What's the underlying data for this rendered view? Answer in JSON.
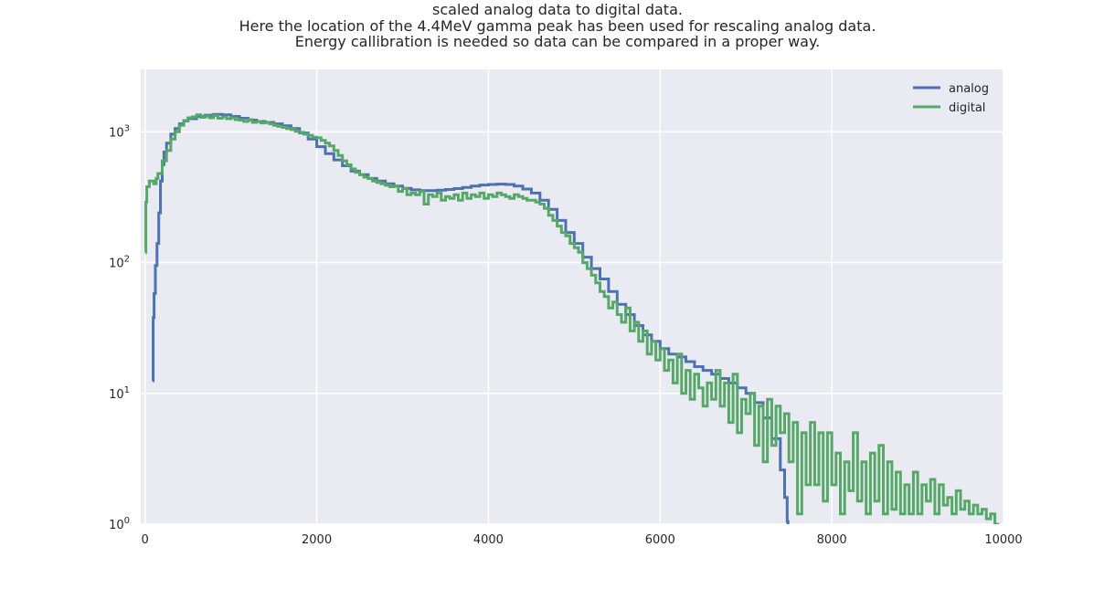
{
  "chart_data": {
    "type": "line",
    "title_lines": [
      "scaled analog data to digital data.",
      "Here the location of the 4.4MeV gamma peak has been used for rescaling analog data.",
      "Energy callibration is needed so data can be compared in a proper way."
    ],
    "xlabel": "",
    "ylabel": "",
    "xlim": [
      -50,
      10000
    ],
    "ylim": [
      1,
      3000
    ],
    "yscale": "log",
    "x_ticks": [
      {
        "value": 0,
        "label": "0"
      },
      {
        "value": 2000,
        "label": "2000"
      },
      {
        "value": 4000,
        "label": "4000"
      },
      {
        "value": 6000,
        "label": "6000"
      },
      {
        "value": 8000,
        "label": "8000"
      },
      {
        "value": 10000,
        "label": "10000"
      }
    ],
    "y_ticks": [
      {
        "value": 1,
        "base": "10",
        "exp": "0"
      },
      {
        "value": 10,
        "base": "10",
        "exp": "1"
      },
      {
        "value": 100,
        "base": "10",
        "exp": "2"
      },
      {
        "value": 1000,
        "base": "10",
        "exp": "3"
      }
    ],
    "grid": true,
    "legend_position": "top-right",
    "series": [
      {
        "name": "analog",
        "color": "#4c72b0",
        "points": [
          [
            85,
            12.5
          ],
          [
            90,
            12.5
          ],
          [
            95,
            38
          ],
          [
            105,
            58
          ],
          [
            120,
            95
          ],
          [
            140,
            140
          ],
          [
            160,
            240
          ],
          [
            180,
            420
          ],
          [
            200,
            560
          ],
          [
            220,
            700
          ],
          [
            250,
            820
          ],
          [
            300,
            960
          ],
          [
            350,
            1060
          ],
          [
            400,
            1150
          ],
          [
            450,
            1210
          ],
          [
            500,
            1260
          ],
          [
            600,
            1310
          ],
          [
            700,
            1340
          ],
          [
            800,
            1360
          ],
          [
            900,
            1350
          ],
          [
            1000,
            1310
          ],
          [
            1100,
            1270
          ],
          [
            1200,
            1230
          ],
          [
            1300,
            1200
          ],
          [
            1400,
            1180
          ],
          [
            1500,
            1150
          ],
          [
            1600,
            1110
          ],
          [
            1700,
            1060
          ],
          [
            1800,
            980
          ],
          [
            1900,
            880
          ],
          [
            2000,
            770
          ],
          [
            2100,
            680
          ],
          [
            2200,
            610
          ],
          [
            2300,
            550
          ],
          [
            2400,
            500
          ],
          [
            2500,
            470
          ],
          [
            2600,
            440
          ],
          [
            2700,
            420
          ],
          [
            2800,
            400
          ],
          [
            2900,
            385
          ],
          [
            3000,
            370
          ],
          [
            3100,
            360
          ],
          [
            3200,
            355
          ],
          [
            3300,
            355
          ],
          [
            3400,
            358
          ],
          [
            3500,
            362
          ],
          [
            3600,
            368
          ],
          [
            3700,
            375
          ],
          [
            3800,
            385
          ],
          [
            3900,
            392
          ],
          [
            4000,
            396
          ],
          [
            4100,
            398
          ],
          [
            4200,
            396
          ],
          [
            4300,
            385
          ],
          [
            4400,
            365
          ],
          [
            4500,
            340
          ],
          [
            4600,
            300
          ],
          [
            4700,
            255
          ],
          [
            4800,
            210
          ],
          [
            4900,
            170
          ],
          [
            5000,
            140
          ],
          [
            5100,
            110
          ],
          [
            5200,
            90
          ],
          [
            5300,
            75
          ],
          [
            5400,
            60
          ],
          [
            5500,
            48
          ],
          [
            5600,
            40
          ],
          [
            5700,
            33
          ],
          [
            5800,
            28
          ],
          [
            5900,
            25
          ],
          [
            6000,
            22
          ],
          [
            6100,
            20
          ],
          [
            6200,
            19
          ],
          [
            6300,
            17.5
          ],
          [
            6400,
            16
          ],
          [
            6500,
            15
          ],
          [
            6600,
            14
          ],
          [
            6700,
            13
          ],
          [
            6800,
            12
          ],
          [
            6900,
            11
          ],
          [
            7000,
            10
          ],
          [
            7100,
            8.5
          ],
          [
            7200,
            6.5
          ],
          [
            7300,
            4.5
          ],
          [
            7400,
            2.6
          ],
          [
            7450,
            1.6
          ],
          [
            7480,
            1.05
          ],
          [
            7490,
            1.0
          ]
        ]
      },
      {
        "name": "digital",
        "color": "#55a868",
        "points": [
          [
            0,
            120
          ],
          [
            10,
            290
          ],
          [
            20,
            380
          ],
          [
            50,
            420
          ],
          [
            100,
            400
          ],
          [
            130,
            440
          ],
          [
            150,
            480
          ],
          [
            200,
            600
          ],
          [
            250,
            720
          ],
          [
            300,
            880
          ],
          [
            350,
            1000
          ],
          [
            400,
            1120
          ],
          [
            450,
            1220
          ],
          [
            500,
            1280
          ],
          [
            550,
            1300
          ],
          [
            600,
            1350
          ],
          [
            650,
            1290
          ],
          [
            700,
            1320
          ],
          [
            750,
            1280
          ],
          [
            800,
            1330
          ],
          [
            850,
            1270
          ],
          [
            900,
            1300
          ],
          [
            950,
            1260
          ],
          [
            1000,
            1280
          ],
          [
            1050,
            1240
          ],
          [
            1100,
            1230
          ],
          [
            1150,
            1200
          ],
          [
            1200,
            1240
          ],
          [
            1250,
            1180
          ],
          [
            1300,
            1200
          ],
          [
            1350,
            1170
          ],
          [
            1400,
            1180
          ],
          [
            1450,
            1150
          ],
          [
            1500,
            1120
          ],
          [
            1550,
            1100
          ],
          [
            1600,
            1080
          ],
          [
            1650,
            1060
          ],
          [
            1700,
            1040
          ],
          [
            1750,
            1010
          ],
          [
            1800,
            990
          ],
          [
            1850,
            960
          ],
          [
            1900,
            940
          ],
          [
            1950,
            910
          ],
          [
            2000,
            900
          ],
          [
            2050,
            860
          ],
          [
            2100,
            820
          ],
          [
            2150,
            780
          ],
          [
            2200,
            720
          ],
          [
            2250,
            660
          ],
          [
            2300,
            600
          ],
          [
            2350,
            560
          ],
          [
            2400,
            520
          ],
          [
            2450,
            490
          ],
          [
            2500,
            470
          ],
          [
            2550,
            450
          ],
          [
            2600,
            440
          ],
          [
            2650,
            420
          ],
          [
            2700,
            410
          ],
          [
            2750,
            400
          ],
          [
            2800,
            390
          ],
          [
            2850,
            380
          ],
          [
            2900,
            385
          ],
          [
            2950,
            350
          ],
          [
            3000,
            370
          ],
          [
            3050,
            330
          ],
          [
            3100,
            340
          ],
          [
            3150,
            330
          ],
          [
            3200,
            350
          ],
          [
            3250,
            280
          ],
          [
            3300,
            330
          ],
          [
            3350,
            320
          ],
          [
            3400,
            340
          ],
          [
            3450,
            300
          ],
          [
            3500,
            320
          ],
          [
            3550,
            310
          ],
          [
            3600,
            330
          ],
          [
            3650,
            300
          ],
          [
            3700,
            340
          ],
          [
            3750,
            310
          ],
          [
            3800,
            330
          ],
          [
            3850,
            320
          ],
          [
            3900,
            340
          ],
          [
            3950,
            310
          ],
          [
            4000,
            330
          ],
          [
            4050,
            320
          ],
          [
            4100,
            340
          ],
          [
            4150,
            330
          ],
          [
            4200,
            320
          ],
          [
            4250,
            310
          ],
          [
            4300,
            330
          ],
          [
            4350,
            320
          ],
          [
            4400,
            310
          ],
          [
            4450,
            300
          ],
          [
            4500,
            300
          ],
          [
            4550,
            290
          ],
          [
            4600,
            280
          ],
          [
            4650,
            260
          ],
          [
            4700,
            230
          ],
          [
            4750,
            210
          ],
          [
            4800,
            190
          ],
          [
            4850,
            170
          ],
          [
            4900,
            160
          ],
          [
            4950,
            140
          ],
          [
            5000,
            130
          ],
          [
            5050,
            120
          ],
          [
            5100,
            100
          ],
          [
            5150,
            90
          ],
          [
            5200,
            80
          ],
          [
            5250,
            70
          ],
          [
            5300,
            60
          ],
          [
            5350,
            55
          ],
          [
            5400,
            45
          ],
          [
            5450,
            50
          ],
          [
            5500,
            40
          ],
          [
            5550,
            35
          ],
          [
            5600,
            45
          ],
          [
            5650,
            30
          ],
          [
            5700,
            35
          ],
          [
            5750,
            25
          ],
          [
            5800,
            30
          ],
          [
            5850,
            20
          ],
          [
            5900,
            25
          ],
          [
            5950,
            18
          ],
          [
            6000,
            22
          ],
          [
            6050,
            15
          ],
          [
            6100,
            18
          ],
          [
            6150,
            12
          ],
          [
            6200,
            20
          ],
          [
            6250,
            10
          ],
          [
            6300,
            15
          ],
          [
            6350,
            9
          ],
          [
            6400,
            14
          ],
          [
            6450,
            11
          ],
          [
            6500,
            8
          ],
          [
            6550,
            12
          ],
          [
            6600,
            9
          ],
          [
            6650,
            15
          ],
          [
            6700,
            8
          ],
          [
            6750,
            12
          ],
          [
            6800,
            6
          ],
          [
            6850,
            14
          ],
          [
            6900,
            5
          ],
          [
            6950,
            9
          ],
          [
            7000,
            7
          ],
          [
            7050,
            10
          ],
          [
            7100,
            4
          ],
          [
            7150,
            8
          ],
          [
            7200,
            3
          ],
          [
            7250,
            9
          ],
          [
            7300,
            4
          ],
          [
            7350,
            8
          ],
          [
            7400,
            5
          ],
          [
            7450,
            7
          ],
          [
            7500,
            3
          ],
          [
            7550,
            6
          ],
          [
            7600,
            1.2
          ],
          [
            7650,
            5
          ],
          [
            7700,
            2
          ],
          [
            7750,
            6
          ],
          [
            7800,
            2
          ],
          [
            7850,
            5
          ],
          [
            7900,
            1.5
          ],
          [
            7950,
            5
          ],
          [
            8000,
            2
          ],
          [
            8050,
            3.5
          ],
          [
            8100,
            1.2
          ],
          [
            8150,
            3
          ],
          [
            8200,
            1.8
          ],
          [
            8250,
            5
          ],
          [
            8300,
            1.5
          ],
          [
            8350,
            3
          ],
          [
            8400,
            1.2
          ],
          [
            8450,
            3.5
          ],
          [
            8500,
            1.5
          ],
          [
            8550,
            4
          ],
          [
            8600,
            1.2
          ],
          [
            8650,
            3
          ],
          [
            8700,
            1.3
          ],
          [
            8750,
            2.5
          ],
          [
            8800,
            1.2
          ],
          [
            8850,
            2
          ],
          [
            8900,
            1.2
          ],
          [
            8950,
            2.5
          ],
          [
            9000,
            1.2
          ],
          [
            9050,
            2
          ],
          [
            9100,
            1.5
          ],
          [
            9150,
            2.2
          ],
          [
            9200,
            1.2
          ],
          [
            9250,
            2
          ],
          [
            9300,
            1.4
          ],
          [
            9350,
            1.6
          ],
          [
            9400,
            1.2
          ],
          [
            9450,
            1.8
          ],
          [
            9500,
            1.3
          ],
          [
            9550,
            1.5
          ],
          [
            9600,
            1.2
          ],
          [
            9650,
            1.4
          ],
          [
            9700,
            1.2
          ],
          [
            9750,
            1.3
          ],
          [
            9800,
            1.1
          ],
          [
            9850,
            1.2
          ],
          [
            9900,
            1.0
          ],
          [
            9950,
            1.0
          ]
        ]
      }
    ]
  }
}
